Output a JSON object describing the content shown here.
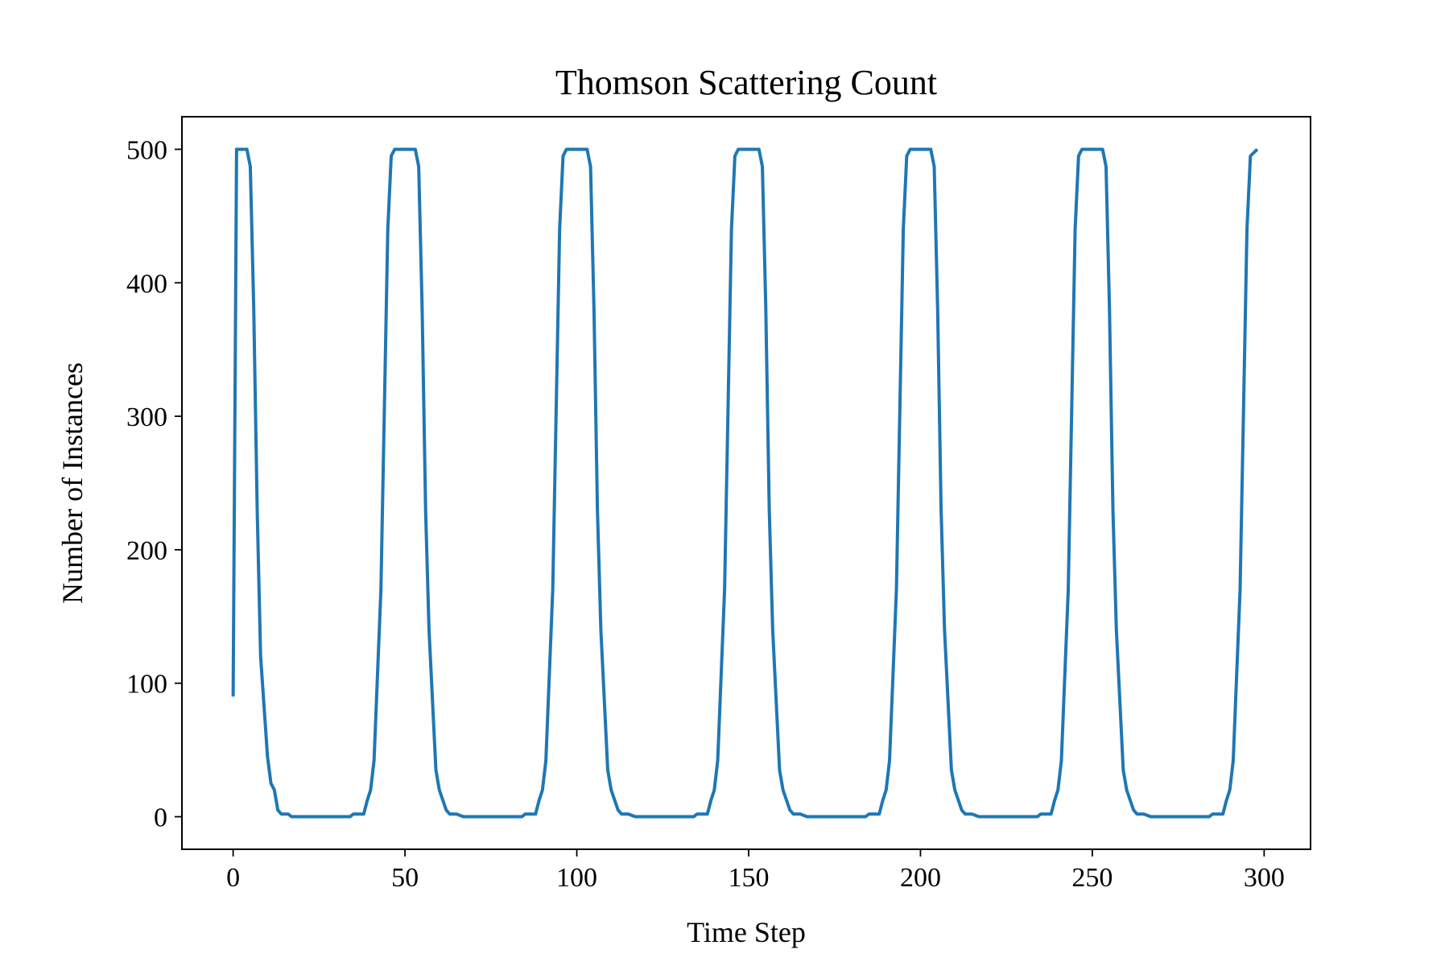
{
  "chart_data": {
    "type": "line",
    "title": "Thomson Scattering Count",
    "x_label": "Time Step",
    "y_label": "Number of Instances",
    "xlim": [
      -14.9,
      313.5
    ],
    "xticks": [
      0,
      50,
      100,
      150,
      200,
      250,
      300
    ],
    "ylim": [
      -24.4,
      524.4
    ],
    "yticks": [
      0,
      100,
      200,
      300,
      400,
      500
    ],
    "grid": false,
    "series": [
      {
        "color": "#1f77b4",
        "x": [
          0,
          1,
          4,
          5,
          6,
          7,
          8,
          10,
          11,
          12,
          13,
          14,
          16,
          17,
          34,
          35,
          38,
          39,
          40,
          41,
          43,
          45,
          46,
          47,
          53,
          54,
          55,
          56,
          57,
          59,
          60,
          62,
          63,
          65,
          67,
          84,
          85,
          88,
          89,
          90,
          91,
          93,
          95,
          96,
          97,
          103,
          104,
          105,
          106,
          107,
          109,
          110,
          112,
          113,
          115,
          117,
          134,
          135,
          138,
          139,
          140,
          141,
          143,
          145,
          146,
          147,
          153,
          154,
          155,
          156,
          157,
          159,
          160,
          162,
          163,
          165,
          167,
          184,
          185,
          188,
          189,
          190,
          191,
          193,
          195,
          196,
          197,
          203,
          204,
          205,
          206,
          207,
          209,
          210,
          212,
          213,
          215,
          217,
          234,
          235,
          238,
          239,
          240,
          241,
          243,
          245,
          246,
          247,
          253,
          254,
          255,
          256,
          257,
          259,
          260,
          262,
          263,
          265,
          267,
          284,
          285,
          288,
          289,
          290,
          291,
          293,
          295,
          296,
          298
        ],
        "values": [
          90,
          500,
          500,
          487,
          380,
          230,
          120,
          45,
          25,
          20,
          5,
          2,
          2,
          0,
          0,
          2,
          2,
          12,
          20,
          42,
          170,
          440,
          495,
          500,
          500,
          487,
          380,
          230,
          140,
          35,
          20,
          5,
          2,
          2,
          0,
          0,
          2,
          2,
          12,
          20,
          42,
          170,
          440,
          495,
          500,
          500,
          487,
          380,
          230,
          140,
          35,
          20,
          5,
          2,
          2,
          0,
          0,
          2,
          2,
          12,
          20,
          42,
          170,
          440,
          495,
          500,
          500,
          487,
          380,
          230,
          140,
          35,
          20,
          5,
          2,
          2,
          0,
          0,
          2,
          2,
          12,
          20,
          42,
          170,
          440,
          495,
          500,
          500,
          487,
          380,
          230,
          140,
          35,
          20,
          5,
          2,
          2,
          0,
          0,
          2,
          2,
          12,
          20,
          42,
          170,
          440,
          495,
          500,
          500,
          487,
          380,
          230,
          140,
          35,
          20,
          5,
          2,
          2,
          0,
          0,
          2,
          2,
          12,
          20,
          42,
          170,
          440,
          495,
          500
        ]
      }
    ]
  }
}
